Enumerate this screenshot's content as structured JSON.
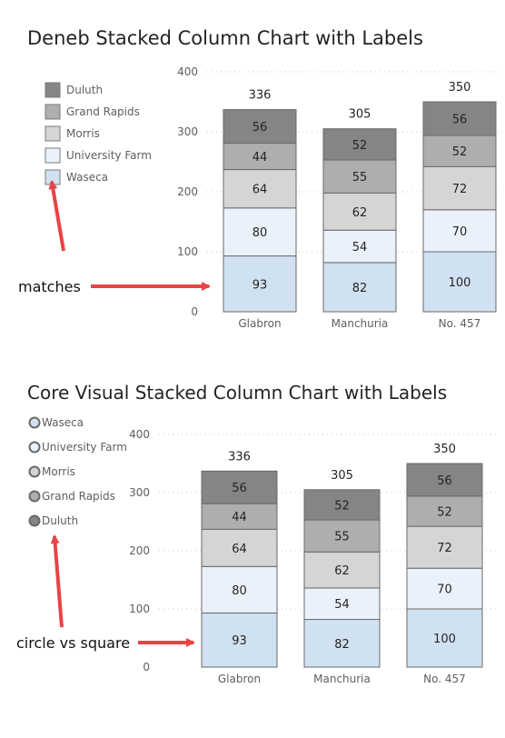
{
  "colors": {
    "Duluth": "#858585",
    "Grand Rapids": "#aeaeae",
    "Morris": "#d5d5d5",
    "University Farm": "#eaf1fa",
    "Waseca": "#d0e1f1",
    "gridline": "#c8c8c8",
    "segment_stroke": "#6a6a6a",
    "arrow": "#e84346"
  },
  "annotations": {
    "top_arrow_label": "matches",
    "bottom_arrow_label": "circle vs square"
  },
  "chart_data": [
    {
      "type": "bar",
      "stacked": true,
      "title": "Deneb Stacked Column Chart with Labels",
      "legend_marker": "square",
      "legend_placement": "left",
      "legend": [
        "Duluth",
        "Grand Rapids",
        "Morris",
        "University Farm",
        "Waseca"
      ],
      "categories": [
        "Glabron",
        "Manchuria",
        "No. 457"
      ],
      "series": [
        {
          "name": "Waseca",
          "values": [
            93,
            82,
            100
          ]
        },
        {
          "name": "University Farm",
          "values": [
            80,
            54,
            70
          ]
        },
        {
          "name": "Morris",
          "values": [
            64,
            62,
            72
          ]
        },
        {
          "name": "Grand Rapids",
          "values": [
            44,
            55,
            52
          ]
        },
        {
          "name": "Duluth",
          "values": [
            56,
            52,
            56
          ]
        }
      ],
      "totals": [
        336,
        305,
        350
      ],
      "yticks": [
        0,
        100,
        200,
        300,
        400
      ],
      "ylim": [
        0,
        400
      ],
      "grid": true
    },
    {
      "type": "bar",
      "stacked": true,
      "title": "Core Visual Stacked Column Chart with Labels",
      "legend_marker": "circle",
      "legend_placement": "left",
      "legend": [
        "Waseca",
        "University Farm",
        "Morris",
        "Grand Rapids",
        "Duluth"
      ],
      "categories": [
        "Glabron",
        "Manchuria",
        "No. 457"
      ],
      "series": [
        {
          "name": "Waseca",
          "values": [
            93,
            82,
            100
          ]
        },
        {
          "name": "University Farm",
          "values": [
            80,
            54,
            70
          ]
        },
        {
          "name": "Morris",
          "values": [
            64,
            62,
            72
          ]
        },
        {
          "name": "Grand Rapids",
          "values": [
            44,
            55,
            52
          ]
        },
        {
          "name": "Duluth",
          "values": [
            56,
            52,
            56
          ]
        }
      ],
      "totals": [
        336,
        305,
        350
      ],
      "yticks": [
        0,
        100,
        200,
        300,
        400
      ],
      "ylim": [
        0,
        400
      ],
      "grid": true
    }
  ]
}
